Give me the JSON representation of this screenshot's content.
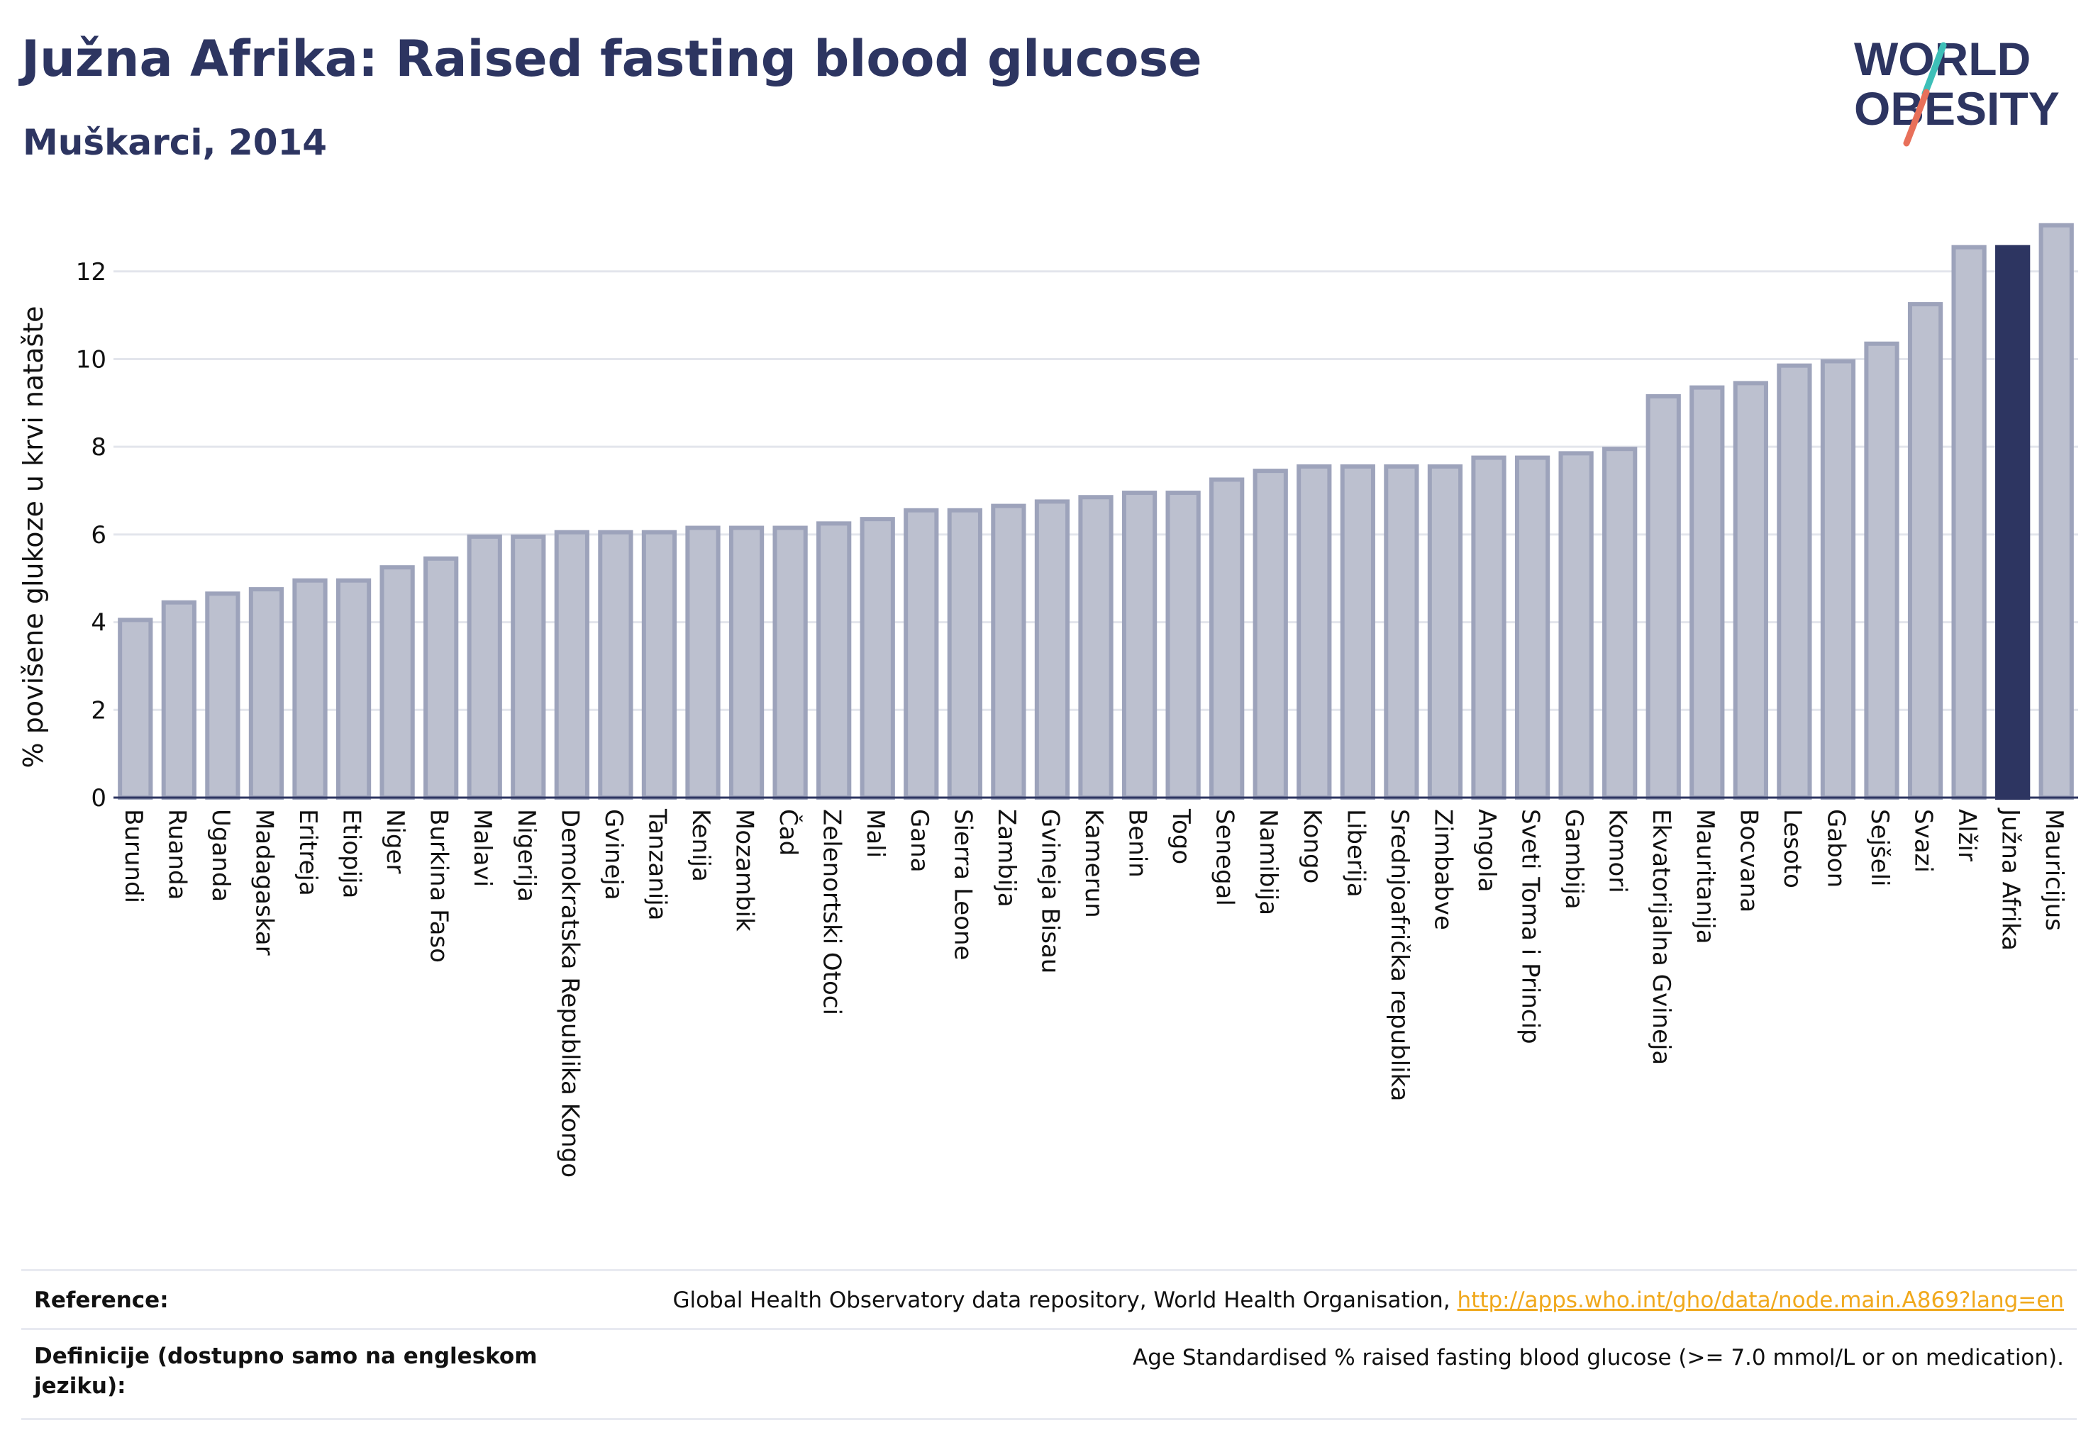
{
  "header": {
    "title": "Južna Afrika: Raised fasting blood glucose",
    "subtitle": "Muškarci, 2014"
  },
  "logo": {
    "line1": "WORLD",
    "line2": "OBESITY"
  },
  "colors": {
    "title": "#2d3561",
    "bar_fill": "#bcc0cf",
    "bar_stroke": "#9da3bb",
    "highlight": "#2d3561",
    "logo_teal": "#3dbfb8",
    "logo_coral": "#e8705a",
    "link": "#f0a81c"
  },
  "chart_data": {
    "type": "bar",
    "ylabel": "% povišene glukoze u krvi natašte",
    "ylim": [
      0,
      13.5
    ],
    "yticks": [
      0,
      2,
      4,
      6,
      8,
      10,
      12
    ],
    "grid": true,
    "highlight_category": "Južna Afrika",
    "categories": [
      "Burundi",
      "Ruanda",
      "Uganda",
      "Madagaskar",
      "Eritreja",
      "Etiopija",
      "Niger",
      "Burkina Faso",
      "Malavi",
      "Nigerija",
      "Demokratska Republika Kongo",
      "Gvineja",
      "Tanzanija",
      "Kenija",
      "Mozambik",
      "Čad",
      "Zelenortski Otoci",
      "Mali",
      "Gana",
      "Sierra Leone",
      "Zambija",
      "Gvineja Bisau",
      "Kamerun",
      "Benin",
      "Togo",
      "Senegal",
      "Namibija",
      "Kongo",
      "Liberija",
      "Srednjoafrička republika",
      "Zimbabve",
      "Angola",
      "Sveti Toma i Princip",
      "Gambija",
      "Komori",
      "Ekvatorijalna Gvineja",
      "Mauritanija",
      "Bocvana",
      "Lesoto",
      "Gabon",
      "Sejšeli",
      "Svazi",
      "Alžir",
      "Južna Afrika",
      "Mauricijus"
    ],
    "values": [
      4.1,
      4.5,
      4.7,
      4.8,
      5.0,
      5.0,
      5.3,
      5.5,
      6.0,
      6.0,
      6.1,
      6.1,
      6.1,
      6.2,
      6.2,
      6.2,
      6.3,
      6.4,
      6.6,
      6.6,
      6.7,
      6.8,
      6.9,
      7.0,
      7.0,
      7.3,
      7.5,
      7.6,
      7.6,
      7.6,
      7.6,
      7.8,
      7.8,
      7.9,
      8.0,
      9.2,
      9.4,
      9.5,
      9.9,
      10.0,
      10.4,
      11.3,
      12.6,
      12.6,
      13.1
    ]
  },
  "footer": {
    "reference_label": "Reference:",
    "reference_text": "Global Health Observatory data repository, World Health Organisation, ",
    "reference_link": "http://apps.who.int/gho/data/node.main.A869?lang=en",
    "definition_label": "Definicije (dostupno samo na engleskom jeziku):",
    "definition_text": "Age Standardised % raised fasting blood glucose (>= 7.0 mmol/L or on medication)."
  }
}
